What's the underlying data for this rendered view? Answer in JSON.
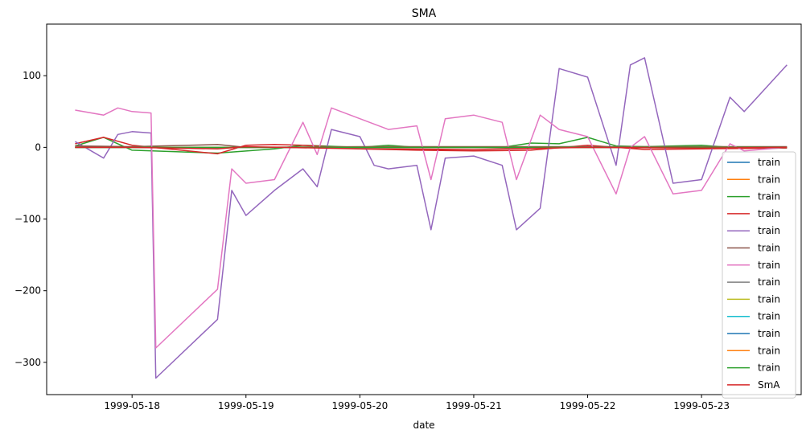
{
  "chart_data": {
    "type": "line",
    "title": "SMA",
    "xlabel": "date",
    "ylabel": "",
    "x_ticks": [
      "1999-05-18",
      "1999-05-19",
      "1999-05-20",
      "1999-05-21",
      "1999-05-22",
      "1999-05-23"
    ],
    "y_ticks": [
      100,
      0,
      -100,
      -200,
      -300
    ],
    "xlim": [
      "1999-05-17 06:00",
      "1999-05-23 21:00"
    ],
    "ylim": [
      -345,
      172
    ],
    "legend_position": "lower-right",
    "series": [
      {
        "name": "train",
        "color": "#1f77b4",
        "x": [
          "1999-05-17 12:00",
          "1999-05-18 00:00",
          "1999-05-19 00:00",
          "1999-05-20 00:00",
          "1999-05-21 00:00",
          "1999-05-22 00:00",
          "1999-05-23 00:00",
          "1999-05-23 18:00"
        ],
        "values": [
          0,
          0,
          0,
          0,
          0,
          0,
          0,
          0
        ]
      },
      {
        "name": "train",
        "color": "#ff7f0e",
        "x": [
          "1999-05-17 12:00",
          "1999-05-18 00:00",
          "1999-05-19 00:00",
          "1999-05-20 00:00",
          "1999-05-21 00:00",
          "1999-05-22 00:00",
          "1999-05-23 00:00",
          "1999-05-23 18:00"
        ],
        "values": [
          0,
          0,
          0,
          0,
          0,
          0,
          0,
          0
        ]
      },
      {
        "name": "train",
        "color": "#2ca02c",
        "x": [
          "1999-05-17 12:00",
          "1999-05-17 18:00",
          "1999-05-18 00:00",
          "1999-05-18 18:00",
          "1999-05-19 06:00",
          "1999-05-19 12:00",
          "1999-05-20 00:00",
          "1999-05-20 06:00",
          "1999-05-20 12:00",
          "1999-05-21 00:00",
          "1999-05-21 06:00",
          "1999-05-21 12:00",
          "1999-05-21 18:00",
          "1999-05-22 00:00",
          "1999-05-22 06:00",
          "1999-05-22 12:00",
          "1999-05-23 00:00",
          "1999-05-23 06:00",
          "1999-05-23 18:00"
        ],
        "values": [
          2,
          14,
          -4,
          -8,
          -2,
          3,
          0,
          3,
          0,
          0,
          0,
          6,
          5,
          14,
          2,
          1,
          3,
          0,
          0
        ]
      },
      {
        "name": "train",
        "color": "#d62728",
        "x": [
          "1999-05-17 12:00",
          "1999-05-17 18:00",
          "1999-05-18 00:00",
          "1999-05-18 18:00",
          "1999-05-19 00:00",
          "1999-05-19 06:00",
          "1999-05-19 12:00",
          "1999-05-20 00:00",
          "1999-05-20 12:00",
          "1999-05-21 00:00",
          "1999-05-21 12:00",
          "1999-05-22 00:00",
          "1999-05-22 12:00",
          "1999-05-23 00:00",
          "1999-05-23 18:00"
        ],
        "values": [
          5,
          14,
          3,
          -9,
          3,
          4,
          3,
          -2,
          -4,
          -5,
          -4,
          3,
          -3,
          -2,
          -1
        ]
      },
      {
        "name": "train",
        "color": "#9467bd",
        "x": [
          "1999-05-17 12:00",
          "1999-05-17 18:00",
          "1999-05-17 21:00",
          "1999-05-18 00:00",
          "1999-05-18 04:00",
          "1999-05-18 05:00",
          "1999-05-18 18:00",
          "1999-05-18 21:00",
          "1999-05-19 00:00",
          "1999-05-19 06:00",
          "1999-05-19 12:00",
          "1999-05-19 15:00",
          "1999-05-19 18:00",
          "1999-05-20 00:00",
          "1999-05-20 03:00",
          "1999-05-20 06:00",
          "1999-05-20 12:00",
          "1999-05-20 15:00",
          "1999-05-20 18:00",
          "1999-05-21 00:00",
          "1999-05-21 06:00",
          "1999-05-21 09:00",
          "1999-05-21 14:00",
          "1999-05-21 18:00",
          "1999-05-22 00:00",
          "1999-05-22 06:00",
          "1999-05-22 09:00",
          "1999-05-22 12:00",
          "1999-05-22 18:00",
          "1999-05-23 00:00",
          "1999-05-23 06:00",
          "1999-05-23 09:00",
          "1999-05-23 18:00"
        ],
        "values": [
          8,
          -15,
          18,
          22,
          20,
          -322,
          -240,
          -60,
          -95,
          -60,
          -30,
          -55,
          25,
          15,
          -25,
          -30,
          -25,
          -115,
          -15,
          -12,
          -25,
          -115,
          -85,
          110,
          98,
          -25,
          115,
          125,
          -50,
          -45,
          70,
          50,
          115
        ]
      },
      {
        "name": "train",
        "color": "#8c564b",
        "x": [
          "1999-05-17 12:00",
          "1999-05-18 00:00",
          "1999-05-18 18:00",
          "1999-05-19 00:00",
          "1999-05-20 00:00",
          "1999-05-21 00:00",
          "1999-05-22 00:00",
          "1999-05-23 00:00",
          "1999-05-23 18:00"
        ],
        "values": [
          2,
          1,
          4,
          0,
          1,
          1,
          1,
          1,
          1
        ]
      },
      {
        "name": "train",
        "color": "#e377c2",
        "x": [
          "1999-05-17 12:00",
          "1999-05-17 18:00",
          "1999-05-17 21:00",
          "1999-05-18 00:00",
          "1999-05-18 04:00",
          "1999-05-18 05:00",
          "1999-05-18 18:00",
          "1999-05-18 21:00",
          "1999-05-19 00:00",
          "1999-05-19 06:00",
          "1999-05-19 12:00",
          "1999-05-19 15:00",
          "1999-05-19 18:00",
          "1999-05-20 00:00",
          "1999-05-20 06:00",
          "1999-05-20 12:00",
          "1999-05-20 15:00",
          "1999-05-20 18:00",
          "1999-05-21 00:00",
          "1999-05-21 06:00",
          "1999-05-21 09:00",
          "1999-05-21 14:00",
          "1999-05-21 18:00",
          "1999-05-22 00:00",
          "1999-05-22 06:00",
          "1999-05-22 09:00",
          "1999-05-22 12:00",
          "1999-05-22 18:00",
          "1999-05-23 00:00",
          "1999-05-23 06:00",
          "1999-05-23 09:00",
          "1999-05-23 18:00"
        ],
        "values": [
          52,
          45,
          55,
          50,
          48,
          -280,
          -198,
          -30,
          -50,
          -45,
          35,
          -10,
          55,
          40,
          25,
          30,
          -45,
          40,
          45,
          35,
          -45,
          45,
          25,
          15,
          -65,
          0,
          15,
          -65,
          -60,
          5,
          -5,
          0
        ]
      },
      {
        "name": "train",
        "color": "#7f7f7f",
        "x": [
          "1999-05-17 12:00",
          "1999-05-23 18:00"
        ],
        "values": [
          0,
          0
        ]
      },
      {
        "name": "train",
        "color": "#bcbd22",
        "x": [
          "1999-05-17 12:00",
          "1999-05-23 18:00"
        ],
        "values": [
          0,
          0
        ]
      },
      {
        "name": "train",
        "color": "#17becf",
        "x": [
          "1999-05-17 12:00",
          "1999-05-23 18:00"
        ],
        "values": [
          0,
          0
        ]
      },
      {
        "name": "train",
        "color": "#1f77b4",
        "x": [
          "1999-05-17 12:00",
          "1999-05-23 18:00"
        ],
        "values": [
          0,
          0
        ]
      },
      {
        "name": "train",
        "color": "#ff7f0e",
        "x": [
          "1999-05-17 12:00",
          "1999-05-23 18:00"
        ],
        "values": [
          0,
          0
        ]
      },
      {
        "name": "train",
        "color": "#2ca02c",
        "x": [
          "1999-05-17 12:00",
          "1999-05-23 18:00"
        ],
        "values": [
          0,
          0
        ]
      },
      {
        "name": "SmA",
        "color": "#d62728",
        "x": [
          "1999-05-17 12:00",
          "1999-05-18 00:00",
          "1999-05-18 18:00",
          "1999-05-19 00:00",
          "1999-05-20 00:00",
          "1999-05-21 00:00",
          "1999-05-22 00:00",
          "1999-05-23 00:00",
          "1999-05-23 18:00"
        ],
        "values": [
          0,
          0,
          -2,
          1,
          -2,
          -3,
          0,
          -1,
          0
        ]
      }
    ]
  }
}
